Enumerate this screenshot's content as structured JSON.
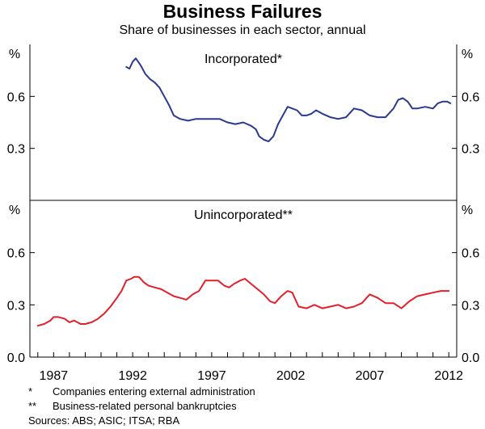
{
  "chart_data": {
    "type": "line",
    "title": "Business Failures",
    "subtitle": "Share of businesses in each sector, annual",
    "x_tick_labels": [
      "1987",
      "1992",
      "1997",
      "2002",
      "2007",
      "2012"
    ],
    "x_ticks": [
      1987,
      1992,
      1997,
      2002,
      2007,
      2012
    ],
    "xlim": [
      1985.5,
      2012.5
    ],
    "unit_label": "%",
    "panels": [
      {
        "title": "Incorporated*",
        "ylim": [
          0.0,
          0.9
        ],
        "y_tick_labels": [
          "0.6",
          "0.3"
        ],
        "y_ticks": [
          0.6,
          0.3
        ],
        "series": [
          {
            "color": "#2b3990",
            "x": [
              1991.6,
              1991.8,
              1992.0,
              1992.2,
              1992.5,
              1992.8,
              1993.1,
              1993.4,
              1993.7,
              1994.0,
              1994.3,
              1994.6,
              1995.0,
              1995.5,
              1996.0,
              1996.5,
              1997.0,
              1997.5,
              1998.0,
              1998.5,
              1999.0,
              1999.5,
              1999.8,
              2000.0,
              2000.3,
              2000.6,
              2000.9,
              2001.2,
              2001.5,
              2001.8,
              2002.1,
              2002.4,
              2002.7,
              2003.0,
              2003.3,
              2003.6,
              2004.0,
              2004.5,
              2005.0,
              2005.5,
              2006.0,
              2006.5,
              2007.0,
              2007.5,
              2008.0,
              2008.5,
              2008.8,
              2009.1,
              2009.4,
              2009.7,
              2010.0,
              2010.5,
              2011.0,
              2011.3,
              2011.6,
              2011.9,
              2012.1
            ],
            "y": [
              0.77,
              0.76,
              0.8,
              0.82,
              0.78,
              0.73,
              0.7,
              0.68,
              0.65,
              0.6,
              0.55,
              0.49,
              0.47,
              0.46,
              0.47,
              0.47,
              0.47,
              0.47,
              0.45,
              0.44,
              0.45,
              0.43,
              0.41,
              0.37,
              0.35,
              0.34,
              0.37,
              0.44,
              0.49,
              0.54,
              0.53,
              0.52,
              0.49,
              0.49,
              0.5,
              0.52,
              0.5,
              0.48,
              0.47,
              0.48,
              0.53,
              0.52,
              0.49,
              0.48,
              0.48,
              0.53,
              0.58,
              0.59,
              0.57,
              0.53,
              0.53,
              0.54,
              0.53,
              0.56,
              0.57,
              0.57,
              0.56
            ]
          }
        ]
      },
      {
        "title": "Unincorporated**",
        "ylim": [
          0.0,
          0.9
        ],
        "y_tick_labels": [
          "0.6",
          "0.3",
          "0.0"
        ],
        "y_ticks": [
          0.6,
          0.3,
          0.0
        ],
        "series": [
          {
            "color": "#e2202c",
            "x": [
              1986.0,
              1986.4,
              1986.8,
              1987.0,
              1987.3,
              1987.7,
              1988.0,
              1988.3,
              1988.7,
              1989.0,
              1989.4,
              1989.8,
              1990.2,
              1990.6,
              1991.0,
              1991.3,
              1991.6,
              1991.9,
              1992.1,
              1992.4,
              1992.7,
              1993.0,
              1993.4,
              1993.8,
              1994.2,
              1994.6,
              1995.0,
              1995.4,
              1995.8,
              1996.2,
              1996.6,
              1997.0,
              1997.4,
              1997.8,
              1998.1,
              1998.4,
              1998.8,
              1999.1,
              1999.5,
              1999.9,
              2000.3,
              2000.7,
              2001.0,
              2001.4,
              2001.8,
              2002.1,
              2002.5,
              2003.0,
              2003.5,
              2004.0,
              2004.5,
              2005.0,
              2005.5,
              2006.0,
              2006.5,
              2007.0,
              2007.5,
              2008.0,
              2008.5,
              2009.0,
              2009.5,
              2010.0,
              2010.5,
              2011.0,
              2011.5,
              2012.0
            ],
            "y": [
              0.18,
              0.19,
              0.21,
              0.23,
              0.23,
              0.22,
              0.2,
              0.21,
              0.19,
              0.19,
              0.2,
              0.22,
              0.25,
              0.29,
              0.34,
              0.38,
              0.44,
              0.45,
              0.46,
              0.46,
              0.43,
              0.41,
              0.4,
              0.39,
              0.37,
              0.35,
              0.34,
              0.33,
              0.36,
              0.38,
              0.44,
              0.44,
              0.44,
              0.41,
              0.4,
              0.42,
              0.44,
              0.45,
              0.42,
              0.39,
              0.36,
              0.32,
              0.31,
              0.35,
              0.38,
              0.37,
              0.29,
              0.28,
              0.3,
              0.28,
              0.29,
              0.3,
              0.28,
              0.29,
              0.31,
              0.36,
              0.34,
              0.31,
              0.31,
              0.28,
              0.32,
              0.35,
              0.36,
              0.37,
              0.38,
              0.38
            ]
          }
        ]
      }
    ],
    "notes": [
      {
        "mark": "*",
        "text": "Companies entering external administration"
      },
      {
        "mark": "**",
        "text": "Business-related personal bankruptcies"
      }
    ],
    "sources": "Sources: ABS; ASIC; ITSA; RBA"
  }
}
